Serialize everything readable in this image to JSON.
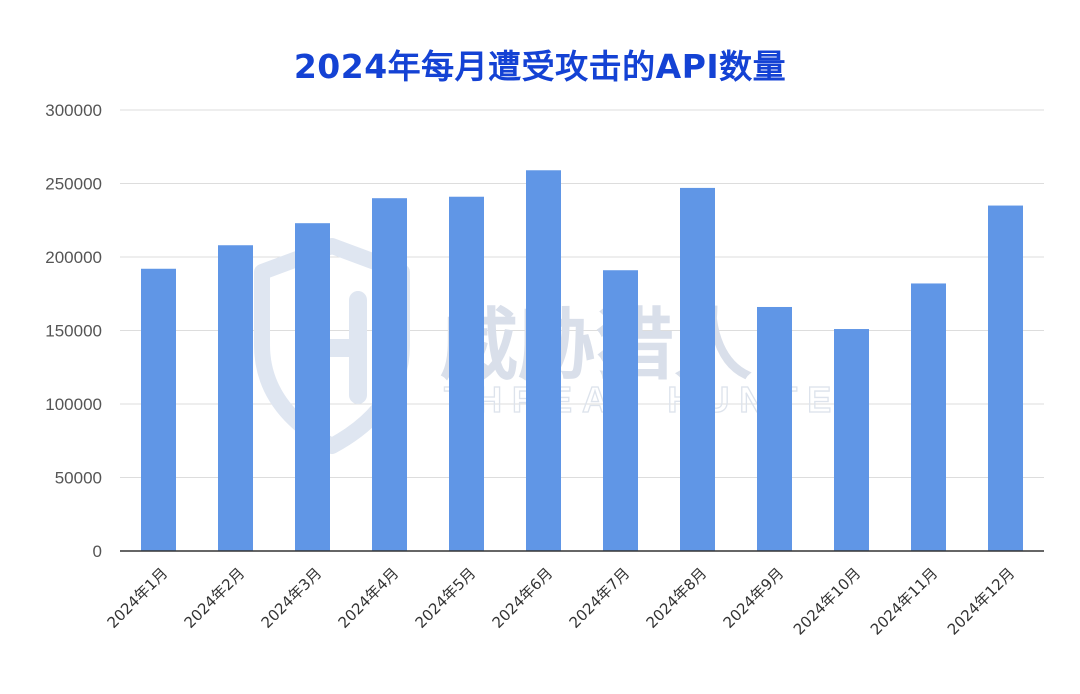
{
  "chart_data": {
    "type": "bar",
    "title": "2024年每月遭受攻击的API数量",
    "xlabel": "",
    "ylabel": "",
    "categories": [
      "2024年1月",
      "2024年2月",
      "2024年3月",
      "2024年4月",
      "2024年5月",
      "2024年6月",
      "2024年7月",
      "2024年8月",
      "2024年9月",
      "2024年10月",
      "2024年11月",
      "2024年12月"
    ],
    "values": [
      192000,
      208000,
      223000,
      240000,
      241000,
      259000,
      191000,
      247000,
      166000,
      151000,
      182000,
      235000
    ],
    "ylim": [
      0,
      300000
    ],
    "yticks": [
      0,
      50000,
      100000,
      150000,
      200000,
      250000,
      300000
    ],
    "grid": true,
    "legend": "none",
    "bar_color": "#6096e6",
    "title_color": "#1442d4"
  },
  "watermark": {
    "cn": "威胁猎人",
    "en": "THREAT HUNTER"
  }
}
